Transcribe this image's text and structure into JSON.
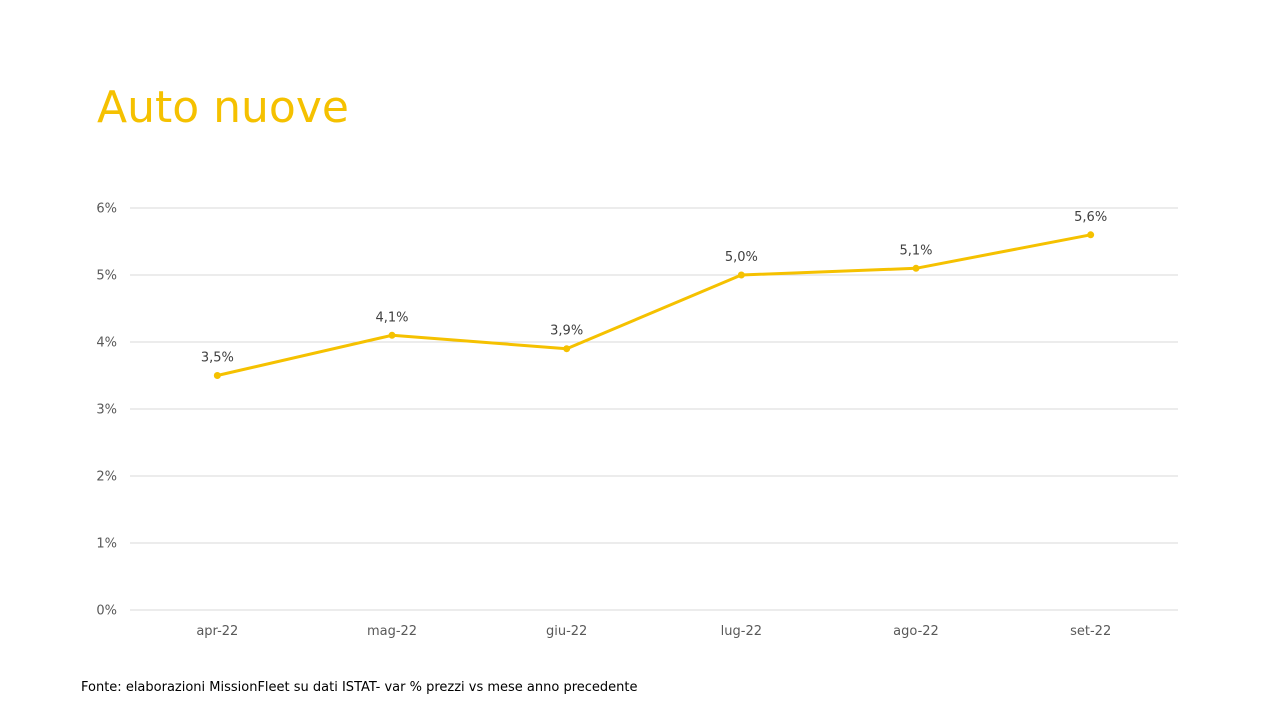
{
  "slide": {
    "title": "Auto nuove",
    "source": "Fonte: elaborazioni MissionFleet su dati ISTAT- var % prezzi vs mese anno precedente"
  },
  "colors": {
    "title": "#F5C100",
    "series": "#F5C100",
    "gridline": "#D9D9D9",
    "axis_text": "#595959"
  },
  "chart_data": {
    "type": "line",
    "categories": [
      "apr-22",
      "mag-22",
      "giu-22",
      "lug-22",
      "ago-22",
      "set-22"
    ],
    "series": [
      {
        "values": [
          3.5,
          4.1,
          3.9,
          5.0,
          5.1,
          5.6
        ],
        "data_labels": [
          "3,5%",
          "4,1%",
          "3,9%",
          "5,0%",
          "5,1%",
          "5,6%"
        ]
      }
    ],
    "y_ticks": [
      0,
      1,
      2,
      3,
      4,
      5,
      6
    ],
    "y_tick_labels": [
      "0%",
      "1%",
      "2%",
      "3%",
      "4%",
      "5%",
      "6%"
    ],
    "ylim": [
      0,
      6
    ],
    "grid": true,
    "legend": "none",
    "markers": true
  }
}
